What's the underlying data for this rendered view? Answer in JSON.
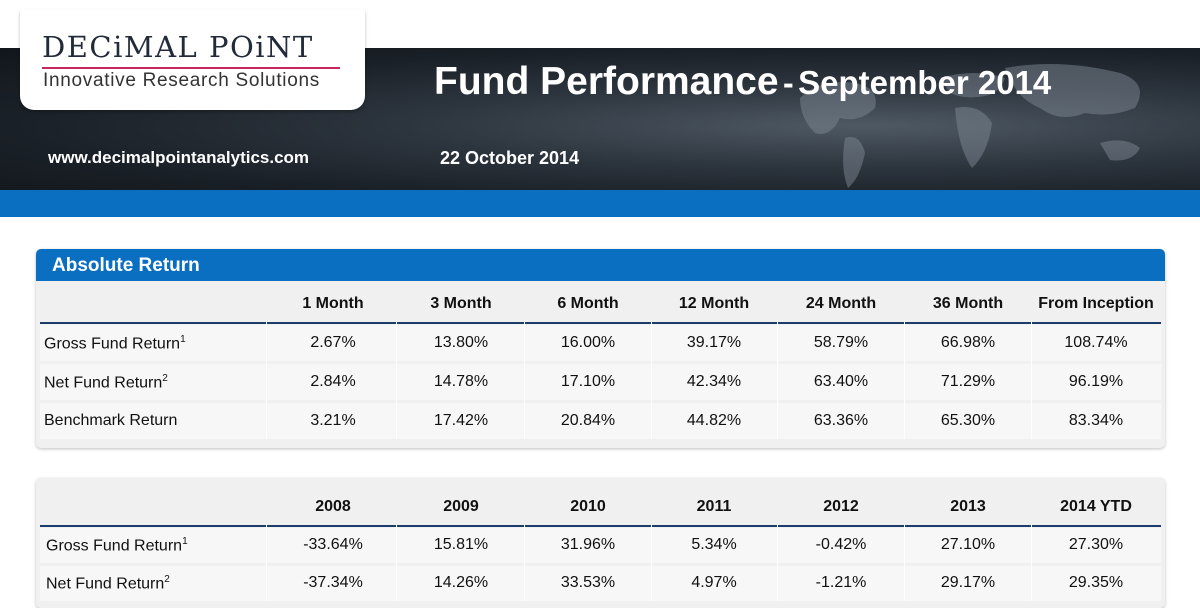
{
  "brand": {
    "name": "DECiMAL POiNT",
    "tagline": "Innovative Research Solutions",
    "website": "www.decimalpointanalytics.com",
    "colors": {
      "dark": "#1a2027",
      "blue": "#0b6fc1",
      "rule": "#c4285c",
      "table_rule": "#1c3c6e"
    }
  },
  "header": {
    "title_main": "Fund Performance",
    "title_sep": "-",
    "title_sub": "September 2014",
    "date": "22 October 2014"
  },
  "absolute_return": {
    "title": "Absolute Return",
    "columns": [
      "1 Month",
      "3 Month",
      "6 Month",
      "12 Month",
      "24 Month",
      "36 Month",
      "From Inception"
    ],
    "rows": [
      {
        "label": "Gross Fund Return",
        "note": "1",
        "values": [
          "2.67%",
          "13.80%",
          "16.00%",
          "39.17%",
          "58.79%",
          "66.98%",
          "108.74%"
        ]
      },
      {
        "label": "Net Fund Return",
        "note": "2",
        "values": [
          "2.84%",
          "14.78%",
          "17.10%",
          "42.34%",
          "63.40%",
          "71.29%",
          "96.19%"
        ]
      },
      {
        "label": "Benchmark Return",
        "note": "",
        "values": [
          "3.21%",
          "17.42%",
          "20.84%",
          "44.82%",
          "63.36%",
          "65.30%",
          "83.34%"
        ]
      }
    ]
  },
  "annual_return": {
    "columns": [
      "2008",
      "2009",
      "2010",
      "2011",
      "2012",
      "2013",
      "2014 YTD"
    ],
    "rows": [
      {
        "label": "Gross Fund Return",
        "note": "1",
        "values": [
          "-33.64%",
          "15.81%",
          "31.96%",
          "5.34%",
          "-0.42%",
          "27.10%",
          "27.30%"
        ]
      },
      {
        "label": "Net Fund Return",
        "note": "2",
        "values": [
          "-37.34%",
          "14.26%",
          "33.53%",
          "4.97%",
          "-1.21%",
          "29.17%",
          "29.35%"
        ]
      }
    ]
  }
}
